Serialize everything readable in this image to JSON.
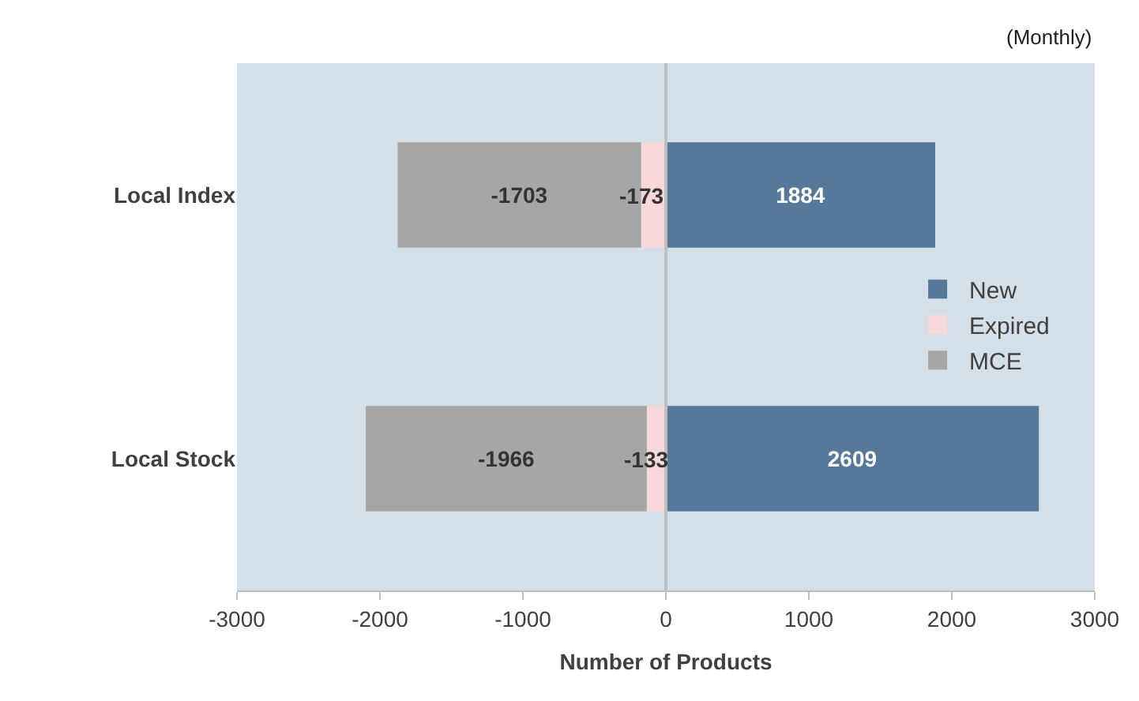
{
  "chart_data": {
    "type": "bar",
    "orientation": "horizontal",
    "stacked": true,
    "xlabel": "Number of Products",
    "annotations": [
      "(Monthly)"
    ],
    "categories": [
      "Local Index",
      "Local Stock"
    ],
    "series": [
      {
        "name": "New",
        "color": "#56789a",
        "values": [
          1884,
          2609
        ]
      },
      {
        "name": "Expired",
        "color": "#f6d9d8",
        "values": [
          -173,
          -133
        ]
      },
      {
        "name": "MCE",
        "color": "#a6a6a6",
        "values": [
          -1703,
          -1966
        ]
      }
    ],
    "xlim": [
      -3000,
      3000
    ],
    "xticks": [
      -3000,
      -2000,
      -1000,
      0,
      1000,
      2000,
      3000
    ],
    "ref_lines": [
      {
        "axis": "x",
        "value": 0,
        "color": "#bfbfbf"
      }
    ],
    "data_labels": true,
    "grid": false,
    "legend": "right"
  }
}
